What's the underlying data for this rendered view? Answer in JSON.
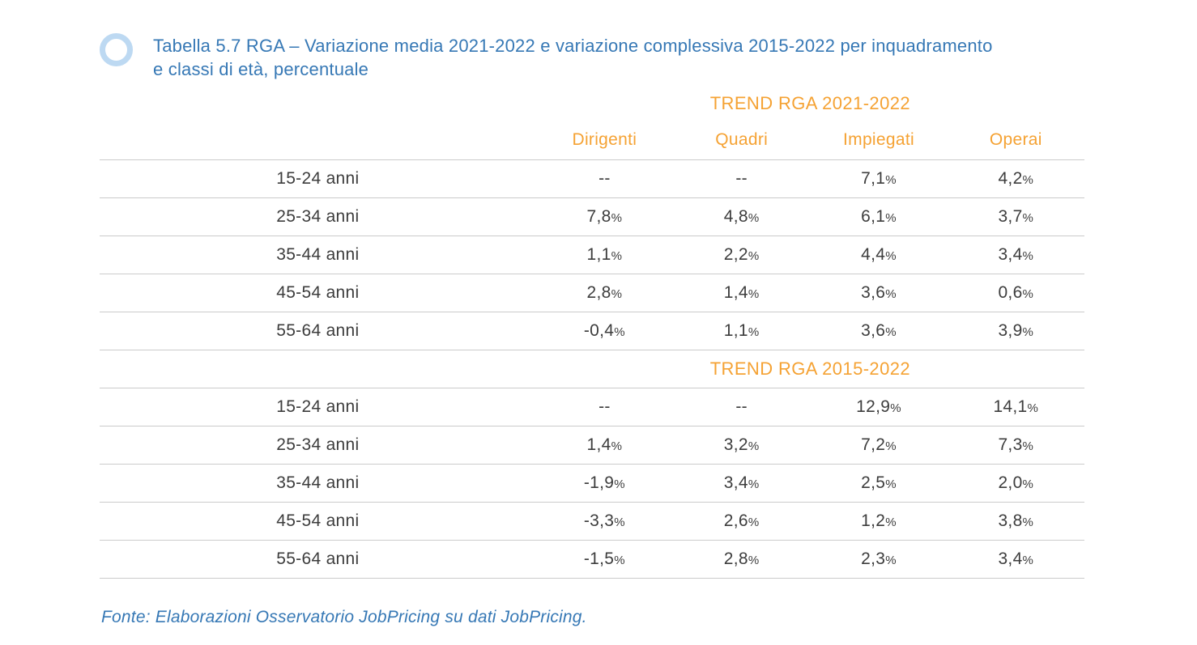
{
  "colors": {
    "accent_blue": "#3678B5",
    "accent_orange": "#F5A233",
    "ring_light_blue": "#BDD9F2",
    "grid_line": "#CBCBCB",
    "cell_text": "#3D3D3D"
  },
  "caption": {
    "line1": "Tabella 5.7 RGA – Variazione media 2021-2022 e variazione complessiva 2015-2022 per inquadramento",
    "line2": "e classi di età, percentuale"
  },
  "chart_data": {
    "type": "table",
    "title": "Tabella 5.7 RGA – Variazione media 2021-2022 e variazione complessiva 2015-2022 per inquadramento e classi di età, percentuale",
    "columns": [
      "Dirigenti",
      "Quadri",
      "Impiegati",
      "Operai"
    ],
    "sections": [
      {
        "heading": "TREND RGA 2021-2022",
        "rows": [
          {
            "label": "15-24 anni",
            "values": [
              "--",
              "--",
              "7,1%",
              "4,2%"
            ]
          },
          {
            "label": "25-34 anni",
            "values": [
              "7,8%",
              "4,8%",
              "6,1%",
              "3,7%"
            ]
          },
          {
            "label": "35-44 anni",
            "values": [
              "1,1%",
              "2,2%",
              "4,4%",
              "3,4%"
            ]
          },
          {
            "label": "45-54 anni",
            "values": [
              "2,8%",
              "1,4%",
              "3,6%",
              "0,6%"
            ]
          },
          {
            "label": "55-64 anni",
            "values": [
              "-0,4%",
              "1,1%",
              "3,6%",
              "3,9%"
            ]
          }
        ]
      },
      {
        "heading": "TREND RGA 2015-2022",
        "rows": [
          {
            "label": "15-24 anni",
            "values": [
              "--",
              "--",
              "12,9%",
              "14,1%"
            ]
          },
          {
            "label": "25-34 anni",
            "values": [
              "1,4%",
              "3,2%",
              "7,2%",
              "7,3%"
            ]
          },
          {
            "label": "35-44 anni",
            "values": [
              "-1,9%",
              "3,4%",
              "2,5%",
              "2,0%"
            ]
          },
          {
            "label": "45-54 anni",
            "values": [
              "-3,3%",
              "2,6%",
              "1,2%",
              "3,8%"
            ]
          },
          {
            "label": "55-64 anni",
            "values": [
              "-1,5%",
              "2,8%",
              "2,3%",
              "3,4%"
            ]
          }
        ]
      }
    ],
    "source": "Fonte: Elaborazioni Osservatorio JobPricing su dati JobPricing."
  },
  "footer": {
    "text": "Fonte: Elaborazioni Osservatorio JobPricing su dati JobPricing."
  }
}
